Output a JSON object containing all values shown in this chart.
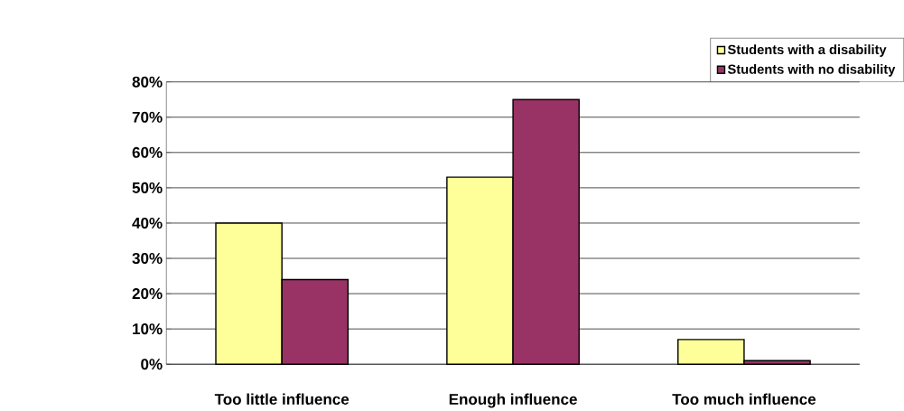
{
  "chart_data": {
    "type": "bar",
    "categories": [
      "Too little influence",
      "Enough influence",
      "Too much influence"
    ],
    "series": [
      {
        "name": "Students with a disability",
        "color": "#ffff99",
        "values": [
          40,
          53,
          7
        ]
      },
      {
        "name": "Students with no disability",
        "color": "#993366",
        "values": [
          24,
          75,
          1
        ]
      }
    ],
    "ylim": [
      0,
      80
    ],
    "yticks": [
      {
        "value": 0,
        "label": "0%"
      },
      {
        "value": 10,
        "label": "10%"
      },
      {
        "value": 20,
        "label": "20%"
      },
      {
        "value": 30,
        "label": "30%"
      },
      {
        "value": 40,
        "label": "40%"
      },
      {
        "value": 50,
        "label": "50%"
      },
      {
        "value": 60,
        "label": "60%"
      },
      {
        "value": 70,
        "label": "70%"
      },
      {
        "value": 80,
        "label": "80%"
      }
    ],
    "grid": "y",
    "legend": "top right"
  }
}
